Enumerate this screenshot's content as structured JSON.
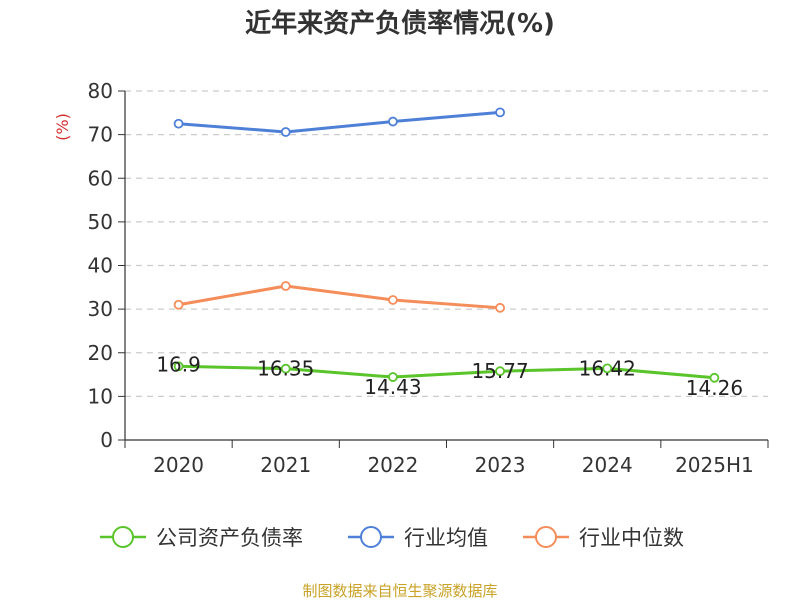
{
  "chart_data": {
    "type": "line",
    "title": "近年来资产负债率情况(%)",
    "ylabel": "(%)",
    "categories": [
      "2020",
      "2021",
      "2022",
      "2023",
      "2024",
      "2025H1"
    ],
    "ylim": [
      0,
      80
    ],
    "yticks": [
      "0",
      "10",
      "20",
      "30",
      "40",
      "50",
      "60",
      "70",
      "80"
    ],
    "grid": true,
    "legend_position": "bottom",
    "series": [
      {
        "name": "公司资产负债率",
        "color": "#5ac42b",
        "values": [
          16.9,
          16.35,
          14.43,
          15.77,
          16.42,
          14.26
        ],
        "labels": [
          "16.9",
          "16.35",
          "14.43",
          "15.77",
          "16.42",
          "14.26"
        ]
      },
      {
        "name": "行业均值",
        "color": "#4e80d8",
        "values": [
          72.5,
          70.6,
          73.0,
          75.1,
          null,
          null
        ]
      },
      {
        "name": "行业中位数",
        "color": "#f58d5a",
        "values": [
          31.0,
          35.3,
          32.1,
          30.3,
          null,
          null
        ]
      }
    ]
  },
  "colors": {
    "unit_label": "#d32f2f",
    "source": "#c9a227",
    "grid": "#cccccc",
    "axis": "#333333"
  },
  "source": "制图数据来自恒生聚源数据库"
}
